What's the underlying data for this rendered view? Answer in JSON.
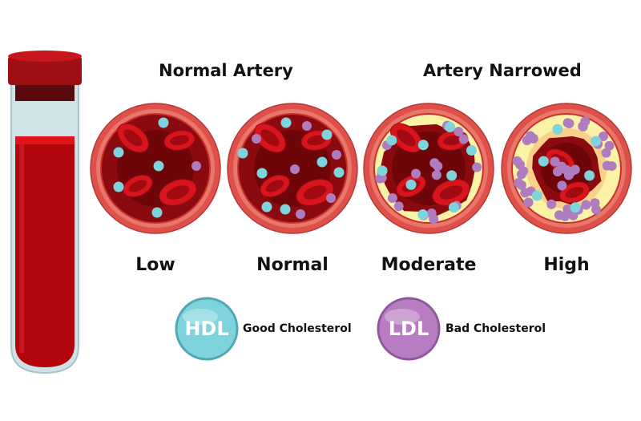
{
  "headings": {
    "normal": "Normal Artery",
    "narrowed": "Artery Narrowed"
  },
  "levels": [
    "Low",
    "Normal",
    "Moderate",
    "High"
  ],
  "legend": [
    {
      "abbr": "HDL",
      "label": "Good Cholesterol",
      "color": "#7fd3dc"
    },
    {
      "abbr": "LDL",
      "label": "Bad Cholesterol",
      "color": "#b87cc2"
    }
  ],
  "colors": {
    "blood": "#8b0a0f",
    "wall": "#e8776a",
    "plaque": "#fbf2a6",
    "hdl": "#7fd3dc",
    "ldl": "#b07cc0"
  }
}
